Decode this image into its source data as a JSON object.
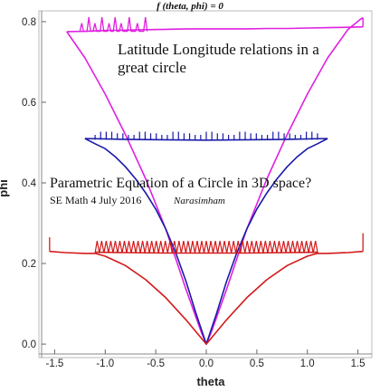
{
  "chart_data": {
    "type": "line",
    "title": "f (theta, phi) = 0",
    "xlabel": "theta",
    "ylabel": "phi",
    "xlim": [
      -1.62,
      1.62
    ],
    "ylim": [
      -0.02,
      0.82
    ],
    "x_ticks": [
      "-1.5",
      "-1.0",
      "-0.5",
      "0.0",
      "0.5",
      "1.0",
      "1.5"
    ],
    "y_ticks": [
      "0.0",
      "0.2",
      "0.4",
      "0.6",
      "0.8"
    ],
    "grid": false,
    "colors": {
      "magenta": "#e020e0",
      "blue": "#1a1aa8",
      "red": "#d21a1a",
      "frame": "#bbbbbb"
    },
    "series": [
      {
        "color": "magenta",
        "x": [
          -1.38,
          -1.2,
          -1.0,
          -0.8,
          -0.6,
          -0.4,
          -0.2,
          -0.05,
          0.0,
          0.05,
          0.2,
          0.4,
          0.6,
          0.8,
          1.0,
          1.2,
          1.4,
          1.52,
          1.55
        ],
        "y": [
          0.775,
          0.71,
          0.62,
          0.52,
          0.41,
          0.285,
          0.135,
          0.03,
          0.0,
          0.03,
          0.135,
          0.285,
          0.41,
          0.52,
          0.62,
          0.71,
          0.78,
          0.805,
          0.81
        ]
      },
      {
        "color": "magenta",
        "x": [
          -1.38,
          -1.2,
          -1.0,
          -0.8,
          -0.6,
          -0.4,
          -0.2,
          0.0,
          0.2,
          0.4,
          0.6,
          0.8,
          1.0,
          1.2,
          1.4,
          1.55
        ],
        "y": [
          0.775,
          0.776,
          0.778,
          0.779,
          0.78,
          0.781,
          0.782,
          0.782,
          0.782,
          0.782,
          0.783,
          0.783,
          0.784,
          0.785,
          0.786,
          0.787
        ]
      },
      {
        "color": "blue",
        "x": [
          -1.2,
          -1.1,
          -1.0,
          -0.9,
          -0.8,
          -0.7,
          -0.6,
          -0.5,
          -0.4,
          -0.3,
          -0.2,
          -0.1,
          0.0,
          0.1,
          0.2,
          0.3,
          0.4,
          0.5,
          0.6,
          0.7,
          0.8,
          0.9,
          1.0,
          1.1,
          1.2
        ],
        "y": [
          0.51,
          0.497,
          0.485,
          0.465,
          0.44,
          0.41,
          0.375,
          0.335,
          0.285,
          0.225,
          0.155,
          0.075,
          0.0,
          0.075,
          0.155,
          0.225,
          0.285,
          0.335,
          0.375,
          0.41,
          0.44,
          0.465,
          0.485,
          0.497,
          0.51
        ]
      },
      {
        "color": "blue",
        "x": [
          -1.2,
          -0.8,
          -0.4,
          0.0,
          0.4,
          0.8,
          1.2
        ],
        "y": [
          0.51,
          0.508,
          0.507,
          0.506,
          0.507,
          0.508,
          0.51
        ]
      },
      {
        "color": "red",
        "x": [
          -1.55,
          -1.4,
          -1.2,
          -1.1,
          -1.0,
          -0.8,
          -0.6,
          -0.4,
          -0.2,
          0.0,
          0.2,
          0.4,
          0.6,
          0.8,
          1.0,
          1.1,
          1.2,
          1.4,
          1.55
        ],
        "y": [
          0.23,
          0.227,
          0.225,
          0.225,
          0.218,
          0.195,
          0.16,
          0.115,
          0.06,
          0.0,
          0.06,
          0.115,
          0.16,
          0.195,
          0.218,
          0.225,
          0.225,
          0.227,
          0.23
        ]
      },
      {
        "color": "red",
        "x": [
          -1.1,
          -0.8,
          -0.4,
          0.0,
          0.4,
          0.8,
          1.1
        ],
        "y": [
          0.228,
          0.227,
          0.226,
          0.226,
          0.226,
          0.227,
          0.228
        ]
      }
    ],
    "annotations": [
      "Latitude Longitude relations in a great circle",
      "Parametric Equation of a Circle in 3D space?",
      "SE Math 4 July 2016",
      "Narasimham"
    ]
  },
  "annotations": {
    "line1": "Latitude Longitude relations in a",
    "line2": "great circle",
    "line3": "Parametric Equation of a Circle in 3D space?",
    "line4a": "SE Math 4 July 2016",
    "line4b": "Narasimham"
  }
}
